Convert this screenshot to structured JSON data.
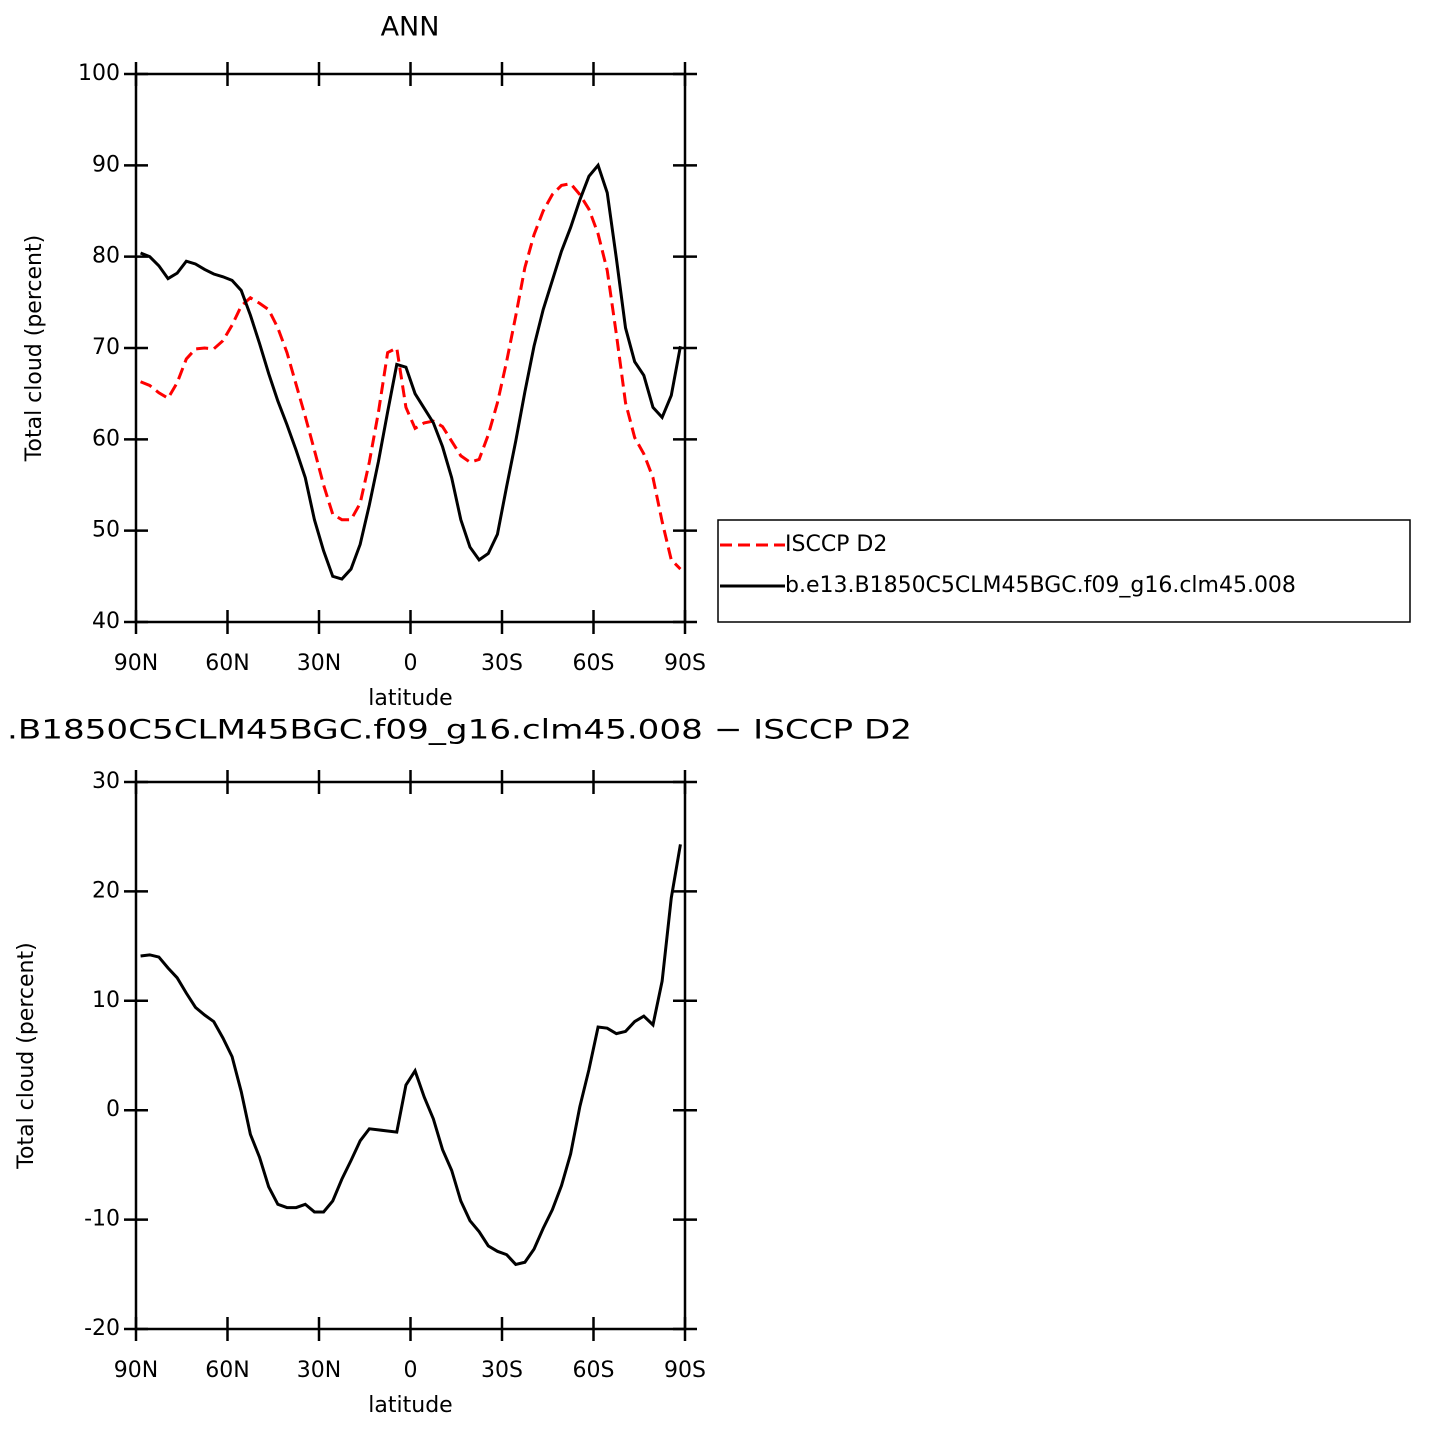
{
  "chart_data": [
    {
      "type": "line",
      "title": "ANN",
      "xlabel": "latitude",
      "ylabel": "Total cloud (percent)",
      "x": [
        88.5,
        85.5,
        82.5,
        79.5,
        76.5,
        73.5,
        70.5,
        67.5,
        64.5,
        61.5,
        58.5,
        55.5,
        52.5,
        49.5,
        46.5,
        43.5,
        40.5,
        37.5,
        34.5,
        31.5,
        28.5,
        25.5,
        22.5,
        19.5,
        16.5,
        13.5,
        10.5,
        7.5,
        4.5,
        1.5,
        -1.5,
        -4.5,
        -7.5,
        -10.5,
        -13.5,
        -16.5,
        -19.5,
        -22.5,
        -25.5,
        -28.5,
        -31.5,
        -34.5,
        -37.5,
        -40.5,
        -43.5,
        -46.5,
        -49.5,
        -52.5,
        -55.5,
        -58.5,
        -61.5,
        -64.5,
        -67.5,
        -70.5,
        -73.5,
        -76.5,
        -79.5,
        -82.5,
        -85.5,
        -88.5
      ],
      "series": [
        {
          "name": "ISCCP D2",
          "color": "#ff0000",
          "linestyle": "dashed",
          "values": [
            66.3,
            65.9,
            65.1,
            64.5,
            66.2,
            68.8,
            69.9,
            70.0,
            69.9,
            70.8,
            72.5,
            74.6,
            75.5,
            74.9,
            74.2,
            72.2,
            69.5,
            66.0,
            62.5,
            58.8,
            55.0,
            51.8,
            51.2,
            51.2,
            53.0,
            57.5,
            63.0,
            69.5,
            70.0,
            63.5,
            61.2,
            61.8,
            62.0,
            61.4,
            59.8,
            58.2,
            57.5,
            57.8,
            60.5,
            64.0,
            68.5,
            73.5,
            78.8,
            82.4,
            85.0,
            86.8,
            87.8,
            88.0,
            86.8,
            85.2,
            82.5,
            78.5,
            71.5,
            64.0,
            60.2,
            58.4,
            55.8,
            51.0,
            46.8,
            45.8
          ]
        },
        {
          "name": "b.e13.B1850C5CLM45BGC.f09_g16.clm45.008",
          "color": "#000000",
          "linestyle": "solid",
          "values": [
            80.4,
            80.0,
            79.0,
            77.6,
            78.2,
            79.5,
            79.2,
            78.6,
            78.1,
            77.8,
            77.4,
            76.3,
            73.6,
            70.5,
            67.2,
            64.2,
            61.6,
            58.8,
            55.8,
            51.2,
            47.8,
            45.0,
            44.7,
            45.8,
            48.5,
            52.8,
            57.6,
            63.0,
            68.2,
            67.9,
            65.0,
            63.4,
            61.8,
            59.2,
            55.8,
            51.2,
            48.2,
            46.8,
            47.5,
            49.6,
            54.8,
            59.8,
            65.2,
            70.2,
            74.2,
            77.4,
            80.6,
            83.2,
            86.2,
            88.8,
            90.0,
            87.0,
            79.8,
            72.2,
            68.5,
            67.0,
            63.5,
            62.4,
            64.8,
            70.2
          ]
        }
      ],
      "xlim": [
        90,
        -90
      ],
      "xticks": [
        {
          "value": 90,
          "label": "90N"
        },
        {
          "value": 60,
          "label": "60N"
        },
        {
          "value": 30,
          "label": "30N"
        },
        0,
        {
          "value": -30,
          "label": "30S"
        },
        {
          "value": -60,
          "label": "60S"
        },
        {
          "value": -90,
          "label": "90S"
        }
      ],
      "ylim": [
        40,
        100
      ],
      "yticks": [
        40,
        50,
        60,
        70,
        80,
        90,
        100
      ],
      "legend": "right"
    },
    {
      "type": "line",
      "title": ".B1850C5CLM45BGC.f09_g16.clm45.008 − ISCCP D2",
      "xlabel": "latitude",
      "ylabel": "Total cloud (percent)",
      "x": [
        88.5,
        85.5,
        82.5,
        79.5,
        76.5,
        73.5,
        70.5,
        67.5,
        64.5,
        61.5,
        58.5,
        55.5,
        52.5,
        49.5,
        46.5,
        43.5,
        40.5,
        37.5,
        34.5,
        31.5,
        28.5,
        25.5,
        22.5,
        19.5,
        16.5,
        13.5,
        10.5,
        7.5,
        4.5,
        1.5,
        -1.5,
        -4.5,
        -7.5,
        -10.5,
        -13.5,
        -16.5,
        -19.5,
        -22.5,
        -25.5,
        -28.5,
        -31.5,
        -34.5,
        -37.5,
        -40.5,
        -43.5,
        -46.5,
        -49.5,
        -52.5,
        -55.5,
        -58.5,
        -61.5,
        -64.5,
        -67.5,
        -70.5,
        -73.5,
        -76.5,
        -79.5,
        -82.5,
        -85.5,
        -88.5
      ],
      "series": [
        {
          "color": "#000000",
          "linestyle": "solid",
          "values": [
            14.1,
            14.2,
            14.0,
            13.0,
            12.1,
            10.7,
            9.4,
            8.7,
            8.1,
            6.6,
            4.9,
            1.7,
            -2.2,
            -4.3,
            -7.0,
            -8.6,
            -8.9,
            -8.9,
            -8.6,
            -9.3,
            -9.3,
            -8.3,
            -6.3,
            -4.6,
            -2.8,
            -1.7,
            -1.8,
            -1.9,
            -2.0,
            2.3,
            3.6,
            1.2,
            -0.8,
            -3.6,
            -5.5,
            -8.3,
            -10.1,
            -11.1,
            -12.4,
            -12.9,
            -13.2,
            -14.1,
            -13.9,
            -12.7,
            -10.8,
            -9.1,
            -6.9,
            -4.0,
            0.3,
            3.7,
            7.6,
            7.5,
            7.0,
            7.2,
            8.1,
            8.6,
            7.8,
            11.8,
            19.4,
            24.3
          ]
        }
      ],
      "xlim": [
        90,
        -90
      ],
      "xticks": [
        {
          "value": 90,
          "label": "90N"
        },
        {
          "value": 60,
          "label": "60N"
        },
        {
          "value": 30,
          "label": "30N"
        },
        0,
        {
          "value": -30,
          "label": "30S"
        },
        {
          "value": -60,
          "label": "60S"
        },
        {
          "value": -90,
          "label": "90S"
        }
      ],
      "ylim": [
        -20,
        30
      ],
      "yticks": [
        -20,
        -10,
        0,
        10,
        20,
        30
      ]
    }
  ]
}
